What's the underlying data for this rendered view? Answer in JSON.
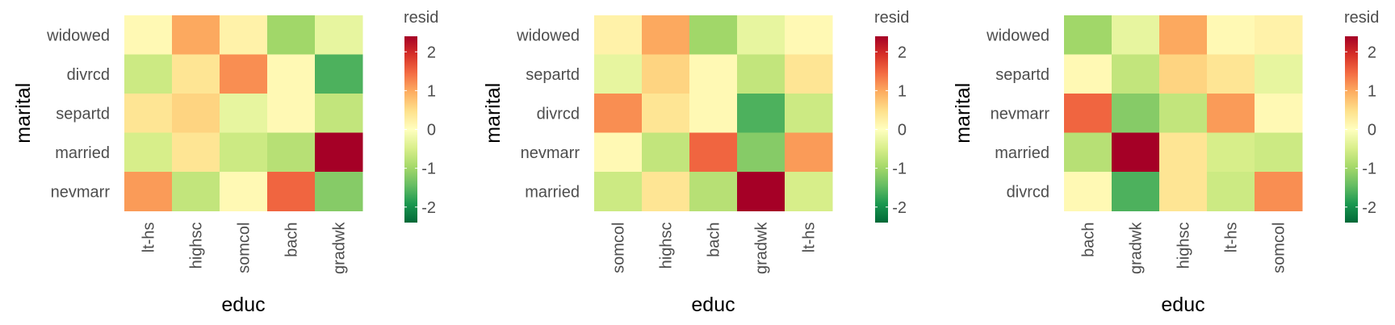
{
  "chart_data": [
    {
      "type": "heatmap",
      "xlabel": "educ",
      "ylabel": "marital",
      "x_categories": [
        "lt-hs",
        "highsc",
        "somcol",
        "bach",
        "gradwk"
      ],
      "y_categories": [
        "widowed",
        "divrcd",
        "separtd",
        "married",
        "nevmarr"
      ],
      "values": [
        [
          0.1,
          1.0,
          0.2,
          -1.0,
          -0.3
        ],
        [
          -0.6,
          0.4,
          1.2,
          0.1,
          -1.6
        ],
        [
          0.4,
          0.6,
          -0.3,
          0.1,
          -0.7
        ],
        [
          -0.5,
          0.4,
          -0.6,
          -0.8,
          2.4
        ],
        [
          1.1,
          -0.7,
          0.1,
          1.5,
          -1.2
        ]
      ],
      "legend": {
        "title": "resid",
        "ticks": [
          2,
          1,
          0,
          -1,
          -2
        ],
        "tick_labels": [
          "2",
          "1",
          "0",
          "-1",
          "-2"
        ],
        "range": [
          -2.4,
          2.4
        ]
      }
    },
    {
      "type": "heatmap",
      "xlabel": "educ",
      "ylabel": "marital",
      "x_categories": [
        "somcol",
        "highsc",
        "bach",
        "gradwk",
        "lt-hs"
      ],
      "y_categories": [
        "widowed",
        "separtd",
        "divrcd",
        "nevmarr",
        "married"
      ],
      "values": [
        [
          0.2,
          1.0,
          -1.0,
          -0.3,
          0.1
        ],
        [
          -0.3,
          0.6,
          0.1,
          -0.7,
          0.4
        ],
        [
          1.2,
          0.4,
          0.1,
          -1.6,
          -0.6
        ],
        [
          0.1,
          -0.7,
          1.5,
          -1.2,
          1.1
        ],
        [
          -0.6,
          0.4,
          -0.8,
          2.4,
          -0.5
        ]
      ],
      "legend": {
        "title": "resid",
        "ticks": [
          2,
          1,
          0,
          -1,
          -2
        ],
        "tick_labels": [
          "2",
          "1",
          "0",
          "-1",
          "-2"
        ],
        "range": [
          -2.4,
          2.4
        ]
      }
    },
    {
      "type": "heatmap",
      "xlabel": "educ",
      "ylabel": "marital",
      "x_categories": [
        "bach",
        "gradwk",
        "highsc",
        "lt-hs",
        "somcol"
      ],
      "y_categories": [
        "widowed",
        "separtd",
        "nevmarr",
        "married",
        "divrcd"
      ],
      "values": [
        [
          -1.0,
          -0.3,
          1.0,
          0.1,
          0.2
        ],
        [
          0.1,
          -0.7,
          0.6,
          0.4,
          -0.3
        ],
        [
          1.5,
          -1.2,
          -0.7,
          1.1,
          0.1
        ],
        [
          -0.8,
          2.4,
          0.4,
          -0.5,
          -0.6
        ],
        [
          0.1,
          -1.6,
          0.4,
          -0.6,
          1.2
        ]
      ],
      "legend": {
        "title": "resid",
        "ticks": [
          2,
          1,
          0,
          -1,
          -2
        ],
        "tick_labels": [
          "2",
          "1",
          "0",
          "-1",
          "-2"
        ],
        "range": [
          -2.4,
          2.4
        ]
      }
    }
  ]
}
